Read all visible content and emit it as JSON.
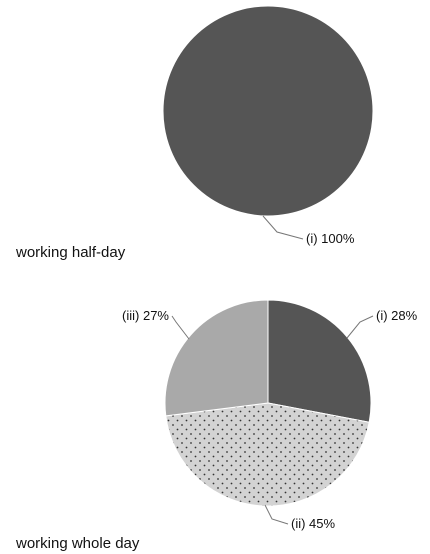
{
  "chart_data": [
    {
      "type": "pie",
      "title": "working half-day",
      "slices": [
        {
          "label": "(i)",
          "value": 100,
          "display": "(i) 100%",
          "color": "#555555",
          "pattern": "solid"
        }
      ]
    },
    {
      "type": "pie",
      "title": "working whole day",
      "slices": [
        {
          "label": "(i)",
          "value": 28,
          "display": "(i) 28%",
          "color": "#555555",
          "pattern": "solid"
        },
        {
          "label": "(ii)",
          "value": 45,
          "display": "(ii) 45%",
          "color": "#d3d3d3",
          "pattern": "dots"
        },
        {
          "label": "(iii)",
          "value": 27,
          "display": "(iii) 27%",
          "color": "#a9a9a9",
          "pattern": "solid"
        }
      ]
    }
  ]
}
